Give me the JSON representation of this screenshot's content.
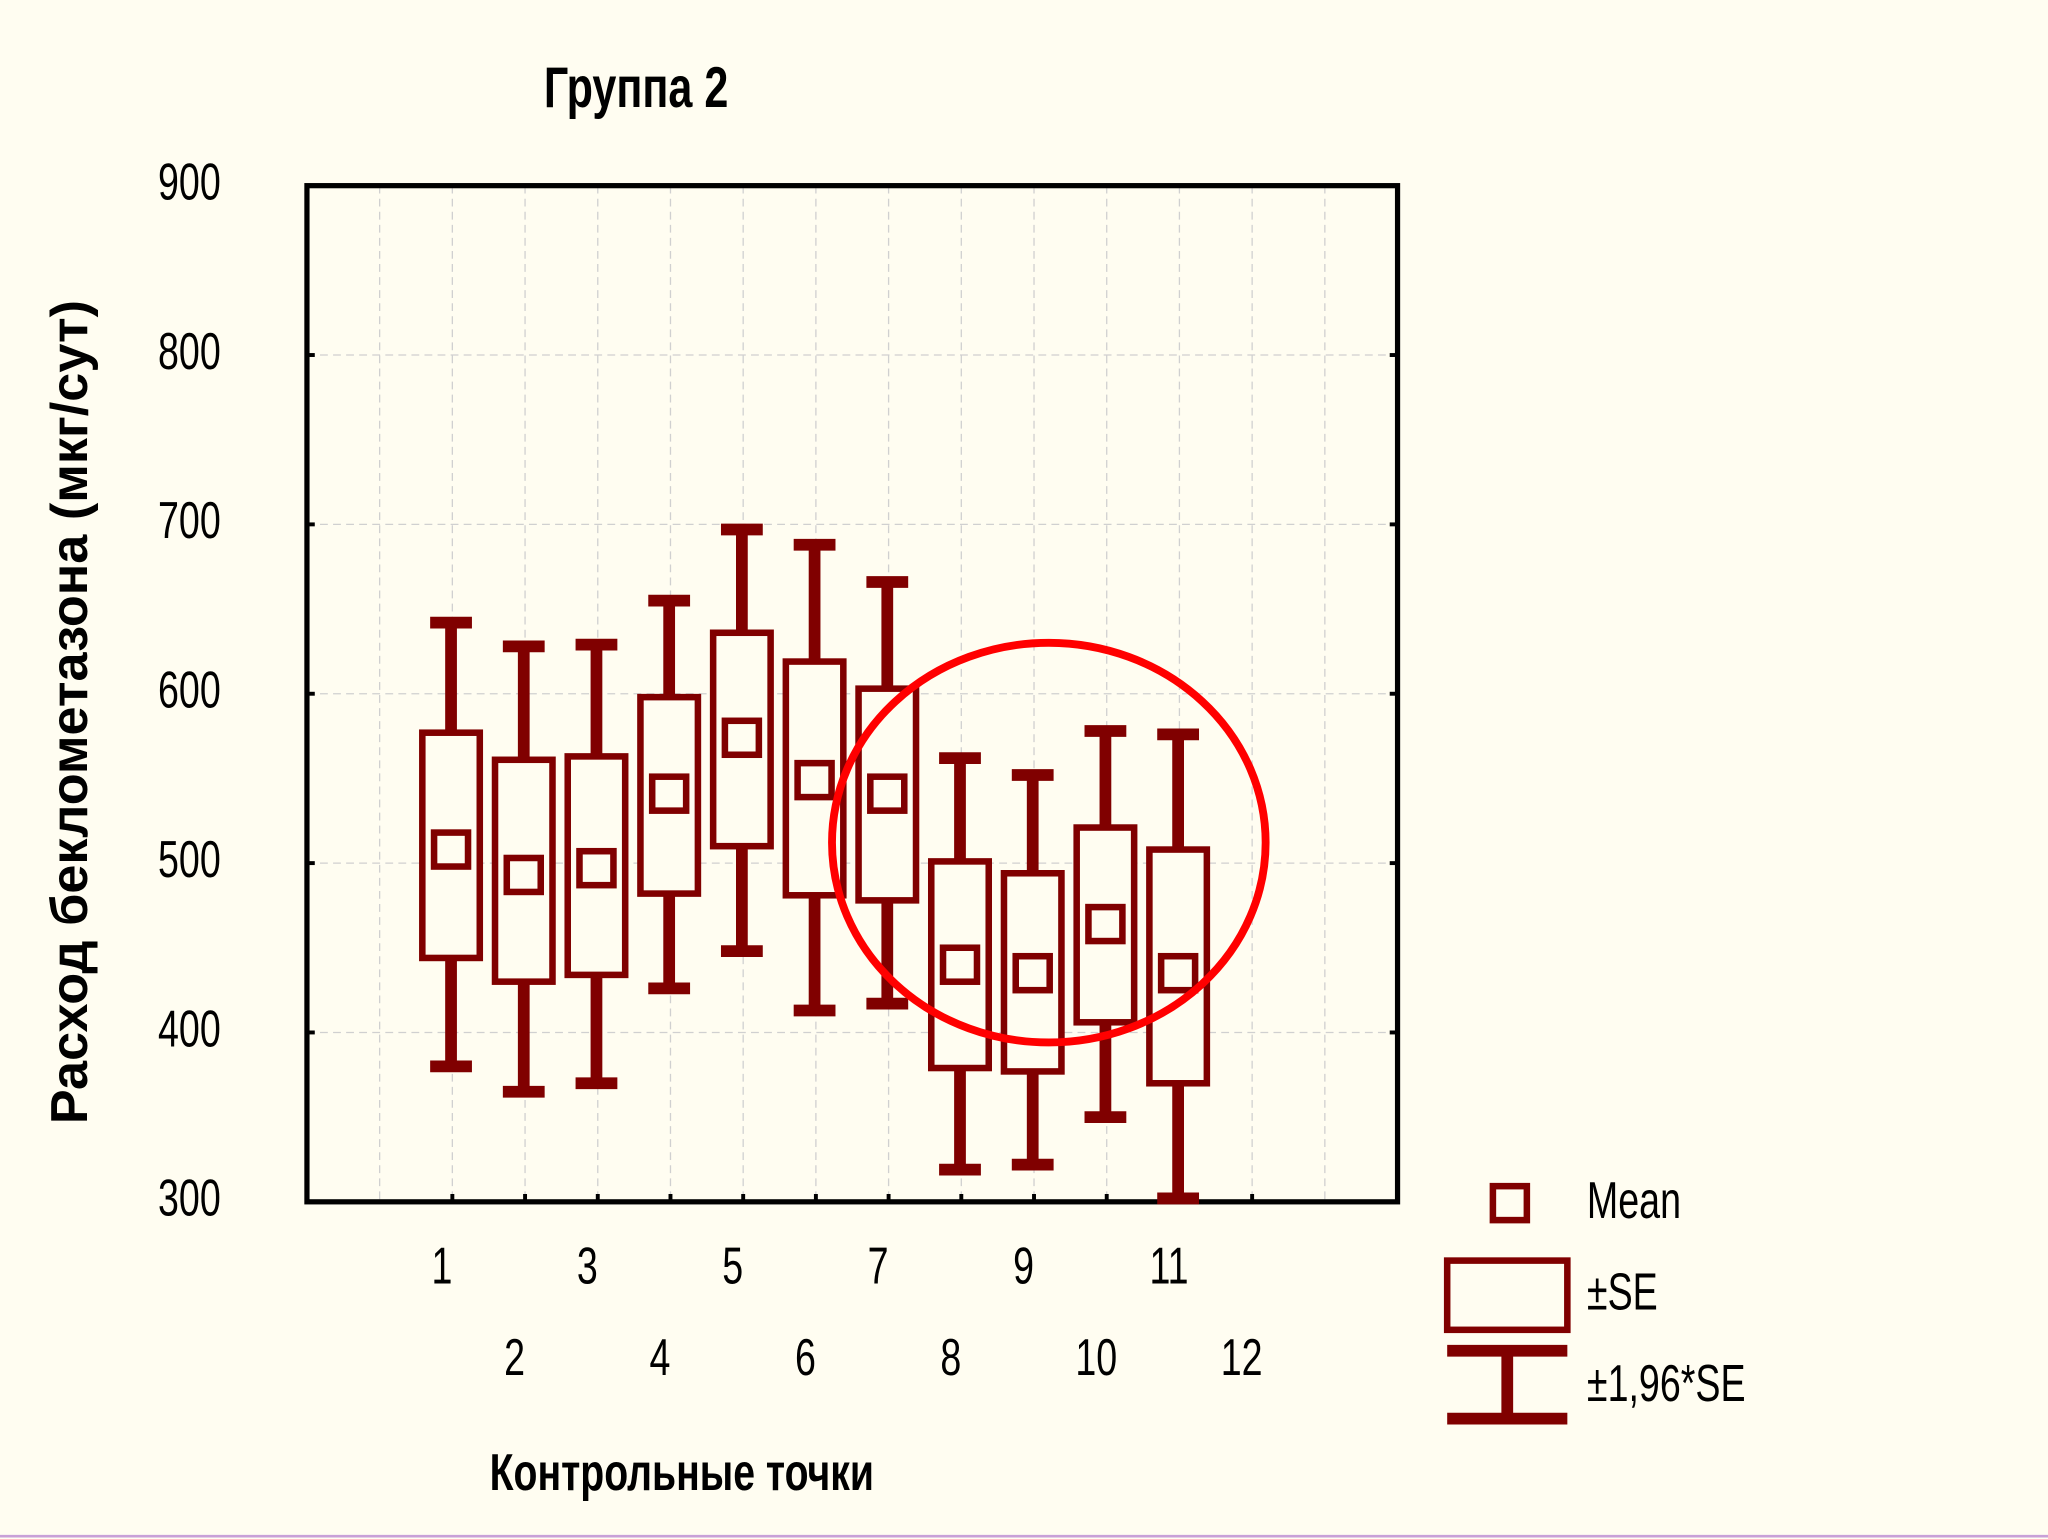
{
  "chart_data": {
    "type": "box",
    "title": "Группа 2",
    "x_label": "Контрольные точки",
    "y_label": "Расход беклометазона (мкг/сут)",
    "categories": [
      "1",
      "2",
      "3",
      "4",
      "5",
      "6",
      "7",
      "8",
      "9",
      "10",
      "11",
      "12"
    ],
    "xlim": [
      -1,
      14
    ],
    "ylim": [
      300,
      900
    ],
    "yticks": [
      300,
      400,
      500,
      600,
      700,
      800,
      900
    ],
    "grid": true,
    "color": "#800000",
    "legend": "bottom-right",
    "series": [
      {
        "name": "Mean",
        "values": [
          508,
          493,
          497,
          541,
          574,
          549,
          541,
          440,
          435,
          464,
          435,
          null
        ]
      },
      {
        "name": "±SE",
        "low": [
          444,
          430,
          434,
          482,
          510,
          481,
          478,
          379,
          377,
          406,
          370,
          null
        ],
        "high": [
          577,
          561,
          563,
          598,
          636,
          619,
          603,
          501,
          494,
          521,
          508,
          null
        ]
      },
      {
        "name": "±1,96*SE",
        "low": [
          380,
          365,
          370,
          426,
          448,
          413,
          417,
          319,
          322,
          350,
          302,
          null
        ],
        "high": [
          642,
          628,
          629,
          655,
          697,
          688,
          666,
          562,
          552,
          578,
          576,
          null
        ]
      }
    ]
  }
}
